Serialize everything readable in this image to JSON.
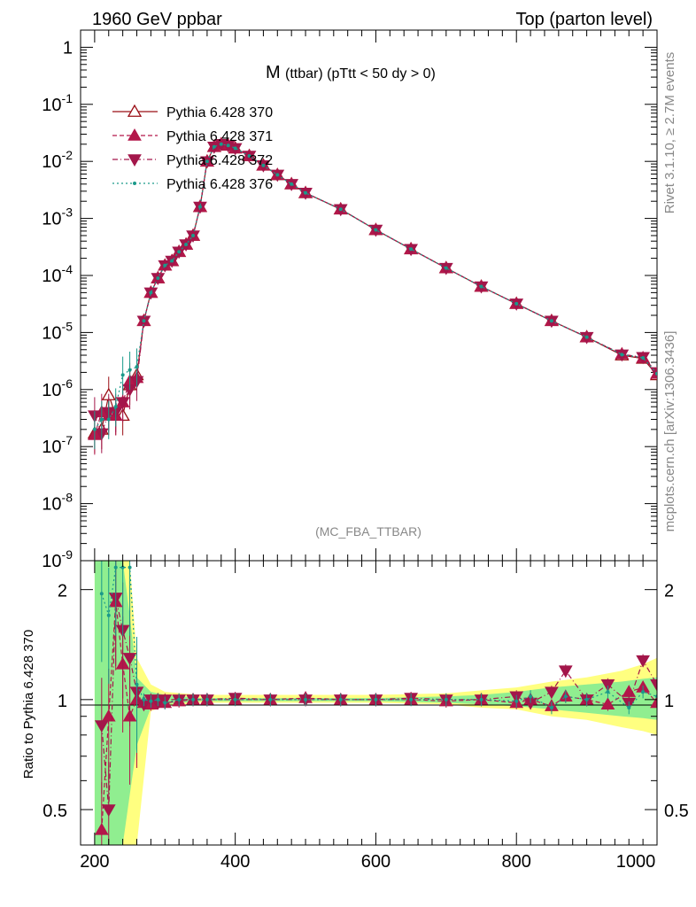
{
  "header": {
    "left_title": "1960 GeV ppbar",
    "right_title": "Top (parton level)"
  },
  "side_labels": {
    "rivet": "Rivet 3.1.10, ≥ 2.7M events",
    "mcplots": "mcplots.cern.ch [arXiv:1306.3436]"
  },
  "plot_title": {
    "main": "M",
    "sub": "(ttbar) (pTtt < 50 dy > 0)"
  },
  "analysis_tag": "(MC_FBA_TTBAR)",
  "colors": {
    "s370": "#9a0d14",
    "s371": "#b3174a",
    "s372": "#a3164a",
    "s376": "#1a9a8a",
    "band_yellow": "#ffff80",
    "band_green": "#90ee90"
  },
  "chart_data": [
    {
      "type": "line",
      "panel": "main",
      "xlabel": "",
      "ylabel": "",
      "xlim": [
        180,
        1000
      ],
      "ylim": [
        1e-09,
        2
      ],
      "yscale": "log",
      "x_ticks": [
        200,
        400,
        600,
        800,
        1000
      ],
      "y_tick_labels": [
        "1",
        "10^-1",
        "10^-2",
        "10^-3",
        "10^-4",
        "10^-5",
        "10^-6",
        "10^-7",
        "10^-8",
        "10^-9"
      ],
      "legend_position": "top-left",
      "series": [
        {
          "name": "Pythia 6.428 370",
          "marker": "open-triangle-up",
          "line": "solid",
          "x": [
            200,
            210,
            220,
            230,
            240,
            250,
            260,
            270,
            280,
            290,
            300,
            310,
            320,
            330,
            340,
            350,
            360,
            370,
            380,
            390,
            400,
            420,
            440,
            460,
            480,
            500,
            550,
            600,
            650,
            700,
            750,
            800,
            850,
            900,
            950,
            980,
            1000
          ],
          "y": [
            1.7e-07,
            2e-07,
            8e-07,
            3.5e-07,
            3.5e-07,
            1.2e-06,
            1.8e-06,
            1.6e-05,
            5e-05,
            9e-05,
            0.00015,
            0.00018,
            0.00026,
            0.00035,
            0.0005,
            0.0016,
            0.01,
            0.018,
            0.02,
            0.019,
            0.017,
            0.0125,
            0.0085,
            0.0058,
            0.004,
            0.0028,
            0.00145,
            0.00063,
            0.00029,
            0.000135,
            6.4e-05,
            3.2e-05,
            1.6e-05,
            8.3e-06,
            4e-06,
            3.5e-06,
            1.8e-06
          ]
        },
        {
          "name": "Pythia 6.428 371",
          "marker": "filled-triangle-up",
          "line": "dashed",
          "x": [
            200,
            210,
            220,
            230,
            240,
            250,
            260,
            270,
            280,
            290,
            300,
            310,
            320,
            330,
            340,
            350,
            360,
            370,
            380,
            390,
            400,
            420,
            440,
            460,
            480,
            500,
            550,
            600,
            650,
            700,
            750,
            800,
            850,
            900,
            950,
            980,
            1000
          ],
          "y": [
            1.6e-07,
            4e-07,
            3.5e-07,
            3.5e-07,
            6e-07,
            1.4e-06,
            1.6e-06,
            1.6e-05,
            5e-05,
            9e-05,
            0.00015,
            0.00018,
            0.00026,
            0.00035,
            0.0005,
            0.0016,
            0.01,
            0.018,
            0.02,
            0.019,
            0.017,
            0.0125,
            0.0085,
            0.0058,
            0.004,
            0.0028,
            0.00145,
            0.00063,
            0.00029,
            0.000135,
            6.4e-05,
            3.2e-05,
            1.6e-05,
            8.3e-06,
            4.2e-06,
            3.6e-06,
            1.9e-06
          ]
        },
        {
          "name": "Pythia 6.428 372",
          "marker": "filled-triangle-down",
          "line": "dashdot",
          "x": [
            200,
            210,
            220,
            230,
            240,
            250,
            260,
            270,
            280,
            290,
            300,
            310,
            320,
            330,
            340,
            350,
            360,
            370,
            380,
            390,
            400,
            420,
            440,
            460,
            480,
            500,
            550,
            600,
            650,
            700,
            750,
            800,
            850,
            900,
            950,
            980,
            1000
          ],
          "y": [
            3.5e-07,
            1.7e-07,
            4e-07,
            4e-07,
            6e-07,
            1e-06,
            1.4e-06,
            1.6e-05,
            5e-05,
            9e-05,
            0.00015,
            0.00018,
            0.00026,
            0.00035,
            0.0005,
            0.0016,
            0.01,
            0.018,
            0.02,
            0.019,
            0.017,
            0.0125,
            0.0085,
            0.0058,
            0.004,
            0.0028,
            0.00145,
            0.00063,
            0.00029,
            0.000135,
            6.4e-05,
            3.2e-05,
            1.6e-05,
            8.3e-06,
            4.1e-06,
            3.7e-06,
            2e-06
          ]
        },
        {
          "name": "Pythia 6.428 376",
          "marker": "small-dot",
          "line": "dotted",
          "x": [
            200,
            210,
            220,
            230,
            240,
            250,
            260,
            270,
            280,
            290,
            300,
            310,
            320,
            330,
            340,
            350,
            360,
            370,
            380,
            390,
            400,
            420,
            440,
            460,
            480,
            500,
            550,
            600,
            650,
            700,
            750,
            800,
            850,
            900,
            950,
            980,
            1000
          ],
          "y": [
            2e-07,
            3e-07,
            3e-07,
            5e-07,
            1.8e-06,
            2.2e-06,
            2.5e-06,
            1.6e-05,
            5e-05,
            9e-05,
            0.00015,
            0.00018,
            0.00026,
            0.00035,
            0.0005,
            0.0016,
            0.01,
            0.018,
            0.02,
            0.019,
            0.017,
            0.0125,
            0.0085,
            0.0058,
            0.004,
            0.0028,
            0.00145,
            0.00063,
            0.00029,
            0.000135,
            6.4e-05,
            3.2e-05,
            1.6e-05,
            8.3e-06,
            4.1e-06,
            3.6e-06,
            1.9e-06
          ]
        }
      ]
    },
    {
      "type": "line",
      "panel": "ratio",
      "xlabel": "",
      "ylabel": "Ratio to Pythia 6.428 370",
      "xlim": [
        180,
        1000
      ],
      "ylim": [
        0.4,
        2.4
      ],
      "yscale": "log",
      "x_ticks": [
        200,
        400,
        600,
        800,
        1000
      ],
      "y_ticks": [
        0.5,
        1,
        2
      ],
      "reference_line": 1,
      "band": {
        "x": [
          200,
          210,
          220,
          230,
          240,
          250,
          260,
          280,
          300,
          350,
          400,
          500,
          600,
          700,
          750,
          800,
          850,
          900,
          950,
          980,
          1000
        ],
        "yellow_lo": [
          0.4,
          0.4,
          0.4,
          0.4,
          0.4,
          0.4,
          0.4,
          0.93,
          0.96,
          0.98,
          0.98,
          0.98,
          0.98,
          0.97,
          0.95,
          0.94,
          0.9,
          0.88,
          0.84,
          0.82,
          0.8
        ],
        "yellow_hi": [
          2.4,
          2.4,
          2.4,
          2.4,
          2.4,
          2.4,
          1.3,
          1.1,
          1.05,
          1.03,
          1.03,
          1.03,
          1.03,
          1.04,
          1.06,
          1.08,
          1.12,
          1.15,
          1.2,
          1.25,
          1.3
        ],
        "green_lo": [
          0.4,
          0.4,
          0.4,
          0.4,
          0.4,
          0.55,
          0.75,
          0.95,
          0.97,
          0.99,
          0.99,
          0.99,
          0.99,
          0.98,
          0.97,
          0.96,
          0.94,
          0.92,
          0.9,
          0.89,
          0.88
        ],
        "green_hi": [
          2.4,
          2.4,
          2.4,
          2.4,
          2.4,
          1.7,
          1.15,
          1.05,
          1.03,
          1.01,
          1.01,
          1.01,
          1.01,
          1.02,
          1.03,
          1.05,
          1.08,
          1.1,
          1.12,
          1.14,
          1.15
        ]
      },
      "series": [
        {
          "name": "Pythia 6.428 371",
          "x": [
            210,
            220,
            230,
            240,
            250,
            260,
            270,
            280,
            290,
            300,
            320,
            340,
            360,
            400,
            450,
            500,
            550,
            600,
            650,
            700,
            750,
            800,
            820,
            850,
            870,
            900,
            930,
            960,
            980,
            1000
          ],
          "y": [
            0.44,
            0.9,
            1.85,
            1.25,
            0.9,
            1.0,
            0.98,
            0.97,
            1.0,
            0.98,
            0.99,
            1.0,
            1.0,
            1.0,
            1.0,
            1.01,
            1.0,
            1.0,
            1.0,
            0.99,
            1.0,
            0.98,
            1.0,
            0.96,
            1.02,
            1.0,
            0.97,
            1.05,
            1.08,
            0.98
          ]
        },
        {
          "name": "Pythia 6.428 372",
          "x": [
            210,
            220,
            230,
            240,
            250,
            260,
            270,
            280,
            290,
            300,
            320,
            340,
            360,
            400,
            450,
            500,
            550,
            600,
            650,
            700,
            750,
            800,
            820,
            850,
            870,
            900,
            930,
            960,
            980,
            1000
          ],
          "y": [
            0.85,
            0.5,
            1.9,
            1.55,
            1.3,
            1.05,
            0.97,
            1.0,
            0.98,
            1.0,
            1.0,
            1.0,
            1.0,
            1.01,
            1.0,
            1.0,
            1.0,
            1.0,
            1.01,
            1.0,
            1.0,
            1.02,
            0.98,
            1.05,
            1.2,
            1.0,
            1.1,
            0.98,
            1.28,
            1.1
          ]
        },
        {
          "name": "Pythia 6.428 376",
          "x": [
            210,
            220,
            230,
            240,
            250,
            260,
            270,
            280,
            290,
            300,
            320,
            340,
            360,
            400,
            450,
            500,
            550,
            600,
            650,
            700,
            750,
            800,
            820,
            850,
            870,
            900,
            930,
            960,
            980,
            1000
          ],
          "y": [
            1.95,
            1.7,
            2.3,
            2.3,
            2.3,
            1.1,
            1.0,
            0.99,
            1.0,
            0.98,
            1.0,
            1.0,
            1.0,
            1.0,
            1.0,
            1.0,
            1.0,
            1.0,
            1.0,
            1.0,
            1.0,
            0.99,
            1.02,
            0.95,
            1.02,
            1.0,
            1.05,
            0.95,
            1.05,
            1.02
          ]
        }
      ]
    }
  ]
}
